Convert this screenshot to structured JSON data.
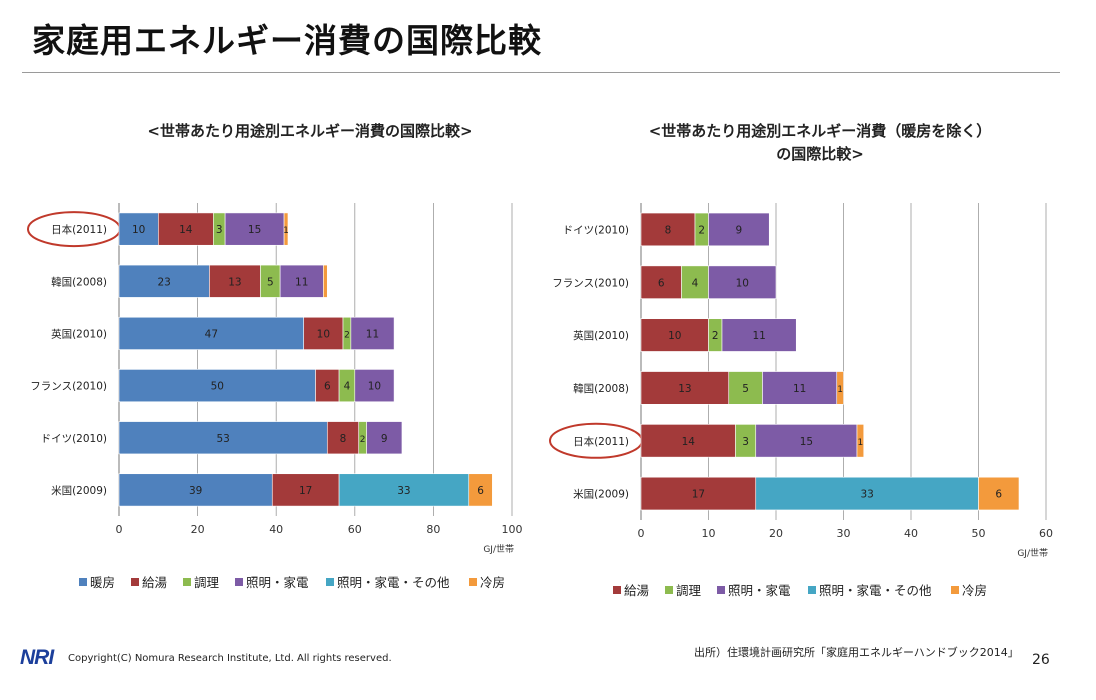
{
  "header": {
    "title": "家庭用エネルギー消費の国際比較"
  },
  "footer": {
    "logo": "NRI",
    "copyright": "Copyright(C) Nomura Research Institute, Ltd. All rights reserved.",
    "source": "出所）住環境計画研究所「家庭用エネルギーハンドブック2014」",
    "page_number": "26"
  },
  "colors": {
    "暖房": "#4f81bd",
    "給湯": "#a33a3a",
    "調理": "#8dbb4f",
    "照明・家電": "#7d5ba6",
    "照明・家電・その他": "#45a6c4",
    "冷房": "#f39a3c"
  },
  "chart_data": [
    {
      "type": "bar",
      "orientation": "horizontal",
      "stacked": true,
      "title": "<世帯あたり用途別エネルギー消費の国際比較>",
      "xlabel": "GJ/世帯",
      "xlim": [
        0,
        100
      ],
      "xticks": [
        0,
        20,
        40,
        60,
        80,
        100
      ],
      "grid": true,
      "legend_position": "bottom",
      "highlight": "日本(2011)",
      "categories": [
        "日本(2011)",
        "韓国(2008)",
        "英国(2010)",
        "フランス(2010)",
        "ドイツ(2010)",
        "米国(2009)"
      ],
      "series": [
        {
          "name": "暖房",
          "values": [
            10,
            23,
            47,
            50,
            53,
            39
          ]
        },
        {
          "name": "給湯",
          "values": [
            14,
            13,
            10,
            6,
            8,
            17
          ]
        },
        {
          "name": "調理",
          "values": [
            3,
            5,
            2,
            4,
            2,
            0
          ]
        },
        {
          "name": "照明・家電",
          "values": [
            15,
            11,
            11,
            10,
            9,
            0
          ]
        },
        {
          "name": "照明・家電・その他",
          "values": [
            0,
            0,
            0,
            0,
            0,
            33
          ]
        },
        {
          "name": "冷房",
          "values": [
            1,
            1,
            0,
            0,
            0,
            6
          ]
        }
      ],
      "data_labels": [
        [
          "10",
          "14",
          "3",
          "15",
          "1"
        ],
        [
          "23",
          "13",
          "5",
          "11",
          ""
        ],
        [
          "47",
          "10",
          "2",
          "11"
        ],
        [
          "50",
          "6",
          "4",
          "10"
        ],
        [
          "53",
          "8",
          "2",
          "9"
        ],
        [
          "39",
          "17",
          "33",
          "6"
        ]
      ]
    },
    {
      "type": "bar",
      "orientation": "horizontal",
      "stacked": true,
      "title": "<世帯あたり用途別エネルギー消費（暖房を除く）\nの国際比較>",
      "xlabel": "GJ/世帯",
      "xlim": [
        0,
        60
      ],
      "xticks": [
        0,
        10,
        20,
        30,
        40,
        50,
        60
      ],
      "grid": true,
      "legend_position": "bottom",
      "highlight": "日本(2011)",
      "categories": [
        "ドイツ(2010)",
        "フランス(2010)",
        "英国(2010)",
        "韓国(2008)",
        "日本(2011)",
        "米国(2009)"
      ],
      "series": [
        {
          "name": "給湯",
          "values": [
            8,
            6,
            10,
            13,
            14,
            17
          ]
        },
        {
          "name": "調理",
          "values": [
            2,
            4,
            2,
            5,
            3,
            0
          ]
        },
        {
          "name": "照明・家電",
          "values": [
            9,
            10,
            11,
            11,
            15,
            0
          ]
        },
        {
          "name": "照明・家電・その他",
          "values": [
            0,
            0,
            0,
            0,
            0,
            33
          ]
        },
        {
          "name": "冷房",
          "values": [
            0,
            0,
            0,
            1,
            1,
            6
          ]
        }
      ],
      "data_labels": [
        [
          "8",
          "2",
          "9"
        ],
        [
          "6",
          "4",
          "10"
        ],
        [
          "10",
          "2",
          "11"
        ],
        [
          "13",
          "5",
          "11",
          "1"
        ],
        [
          "14",
          "3",
          "15",
          "1"
        ],
        [
          "17",
          "33",
          "6"
        ]
      ]
    }
  ]
}
